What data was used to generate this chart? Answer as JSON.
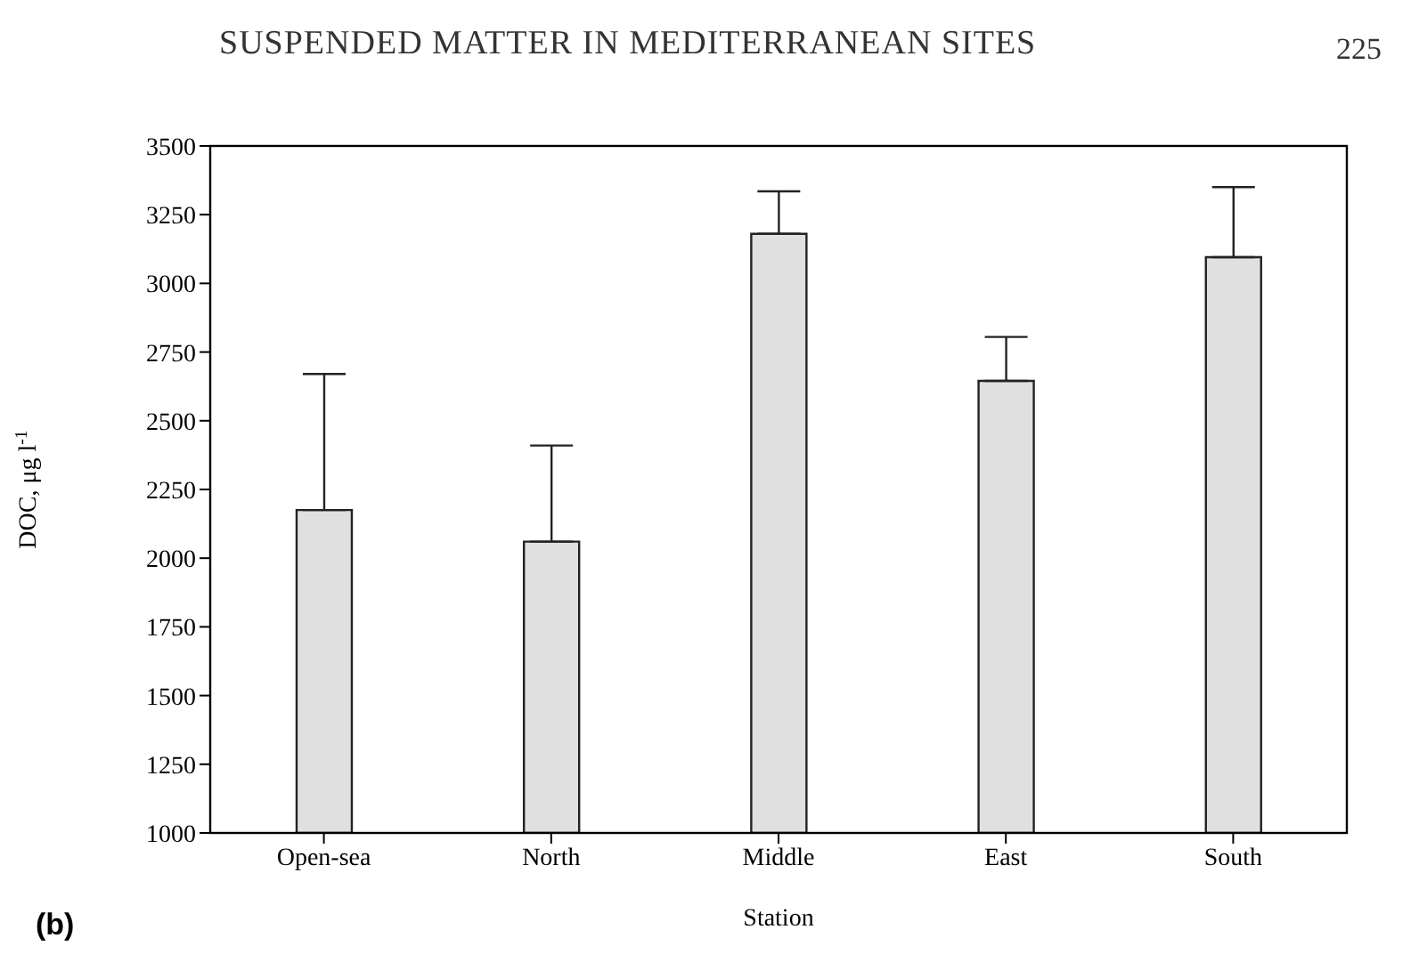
{
  "chart_data": {
    "type": "bar",
    "annotations": [
      "SUSPENDED MATTER IN MEDITERRANEAN SITES",
      "225",
      "(b)"
    ],
    "xlabel": "Station",
    "ylabel": "DOC, μg l$^{-1}$",
    "categories": [
      "Open-sea",
      "North",
      "Middle",
      "East",
      "South"
    ],
    "values": [
      2175,
      2060,
      3180,
      2645,
      3095
    ],
    "errors": [
      [
        2175,
        2670
      ],
      [
        2060,
        2410
      ],
      [
        3180,
        3335
      ],
      [
        2645,
        2805
      ],
      [
        3095,
        3350
      ]
    ],
    "color": "#e0e0e0",
    "ylim": [
      1000,
      3500
    ],
    "yticks": [
      1000,
      1250,
      1500,
      1750,
      2000,
      2250,
      2500,
      2750,
      3000,
      3250,
      3500
    ],
    "grid": false
  }
}
